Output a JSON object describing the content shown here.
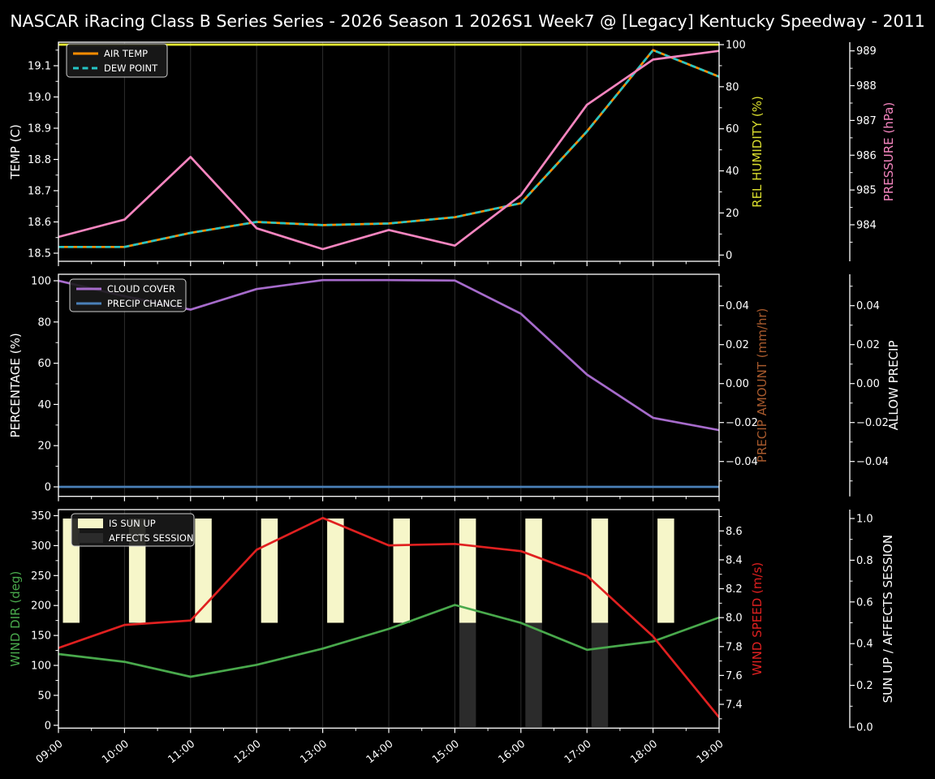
{
  "title": "NASCAR iRacing Class B Series Series - 2026 Season 1 2026S1 Week7 @ [Legacy] Kentucky Speedway - 2011",
  "colors": {
    "background": "#000000",
    "foreground": "#ffffff",
    "air_temp": "#ff8c00",
    "dew_point": "#25c5c5",
    "rel_humidity": "#dade2e",
    "pressure": "#f585bf",
    "cloud_cover": "#a66bcb",
    "precip_chance": "#4a80b8",
    "precip_amount": "#a85a2d",
    "wind_dir": "#49a94c",
    "wind_speed": "#e02020",
    "sun_up_bar": "#f6f6c9",
    "affects_session_bar": "#2b2b2b",
    "gridline": "#2e2e2e"
  },
  "x_categories": [
    "09:00",
    "10:00",
    "11:00",
    "12:00",
    "13:00",
    "14:00",
    "15:00",
    "16:00",
    "17:00",
    "18:00",
    "19:00"
  ],
  "chart_data": [
    {
      "id": "temperature-humidity-pressure",
      "type": "line",
      "axes": {
        "left": {
          "label": "TEMP (C)",
          "label_color": "#ffffff",
          "ticks": [
            "18.5",
            "18.6",
            "18.7",
            "18.8",
            "18.9",
            "19.0",
            "19.1"
          ]
        },
        "right1": {
          "label": "REL HUMIDITY (%)",
          "label_color": "#dade2e",
          "ticks": [
            "0",
            "20",
            "40",
            "60",
            "80",
            "100"
          ]
        },
        "right2": {
          "label": "PRESSURE (hPa)",
          "label_color": "#f585bf",
          "ticks": [
            "984",
            "985",
            "986",
            "987",
            "988",
            "989"
          ]
        }
      },
      "series": [
        {
          "name": "AIR TEMP",
          "kind": "line",
          "axis": "left",
          "color": "#ff8c00",
          "dash": "solid",
          "legend": true,
          "values": [
            18.52,
            18.52,
            18.565,
            18.6,
            18.59,
            18.595,
            18.615,
            18.66,
            18.89,
            19.15,
            19.065
          ]
        },
        {
          "name": "DEW POINT",
          "kind": "line",
          "axis": "left",
          "color": "#25c5c5",
          "dash": "dashed",
          "legend": true,
          "values": [
            18.52,
            18.52,
            18.565,
            18.6,
            18.59,
            18.595,
            18.615,
            18.66,
            18.89,
            19.15,
            19.065
          ]
        },
        {
          "name": "REL HUMIDITY",
          "kind": "line",
          "axis": "right1",
          "color": "#e4e832",
          "dash": "solid",
          "legend": false,
          "values": [
            100,
            100,
            100,
            100,
            100,
            100,
            100,
            100,
            100,
            100,
            100
          ]
        },
        {
          "name": "PRESSURE",
          "kind": "line",
          "axis": "right2",
          "color": "#f585bf",
          "dash": "solid",
          "legend": false,
          "values": [
            983.65,
            984.15,
            985.95,
            983.9,
            983.3,
            983.85,
            983.4,
            984.85,
            987.45,
            988.75,
            989.0
          ]
        }
      ]
    },
    {
      "id": "cloud-precip",
      "type": "line",
      "axes": {
        "left": {
          "label": "PERCENTAGE (%)",
          "label_color": "#ffffff",
          "ticks": [
            "0",
            "20",
            "40",
            "60",
            "80",
            "100"
          ]
        },
        "right1": {
          "label": "PRECIP AMOUNT (mm/hr)",
          "label_color": "#a85a2d",
          "ticks": [
            "−0.04",
            "−0.02",
            "0.00",
            "0.02",
            "0.04"
          ]
        },
        "right2": {
          "label": "ALLOW PRECIP",
          "label_color": "#ffffff",
          "ticks": [
            "−0.04",
            "−0.02",
            "0.00",
            "0.02",
            "0.04"
          ]
        }
      },
      "series": [
        {
          "name": "CLOUD COVER",
          "kind": "line",
          "axis": "left",
          "color": "#a66bcb",
          "dash": "solid",
          "legend": true,
          "values": [
            100,
            92.5,
            86,
            96,
            100.3,
            100.3,
            100.1,
            84,
            54.5,
            33.5,
            27.5
          ]
        },
        {
          "name": "PRECIP CHANCE",
          "kind": "line",
          "axis": "left",
          "color": "#4a80b8",
          "dash": "solid",
          "legend": true,
          "values": [
            0,
            0,
            0,
            0,
            0,
            0,
            0,
            0,
            0,
            0,
            0
          ]
        }
      ]
    },
    {
      "id": "wind-sun",
      "type": "mixed",
      "axes": {
        "left": {
          "label": "WIND DIR (deg)",
          "label_color": "#49a94c",
          "ticks": [
            "0",
            "50",
            "100",
            "150",
            "200",
            "250",
            "300",
            "350"
          ]
        },
        "right1": {
          "label": "WIND SPEED (m/s)",
          "label_color": "#e02020",
          "ticks": [
            "7.4",
            "7.6",
            "7.8",
            "8.0",
            "8.2",
            "8.4",
            "8.6"
          ]
        },
        "right2": {
          "label": "SUN UP / AFFECTS SESSION",
          "label_color": "#ffffff",
          "ticks": [
            "0.0",
            "0.2",
            "0.4",
            "0.6",
            "0.8",
            "1.0"
          ]
        }
      },
      "series": [
        {
          "name": "IS SUN UP",
          "kind": "bar",
          "axis": "right2",
          "color": "#f6f6c9",
          "legend": true,
          "lo": 0.5,
          "hi": 1.0,
          "values": [
            1,
            1,
            1,
            1,
            1,
            1,
            1,
            1,
            1,
            1,
            0
          ]
        },
        {
          "name": "AFFECTS SESSION",
          "kind": "bar",
          "axis": "right2",
          "color": "#2b2b2b",
          "legend": true,
          "lo": 0.0,
          "hi": 0.5,
          "values": [
            0,
            0,
            0,
            0,
            0,
            0,
            1,
            1,
            1,
            0,
            0
          ]
        },
        {
          "name": "WIND DIR",
          "kind": "line",
          "axis": "left",
          "color": "#49a94c",
          "dash": "solid",
          "legend": false,
          "values": [
            119,
            106,
            81,
            101,
            128,
            161,
            201,
            171,
            126,
            140,
            180
          ]
        },
        {
          "name": "WIND SPEED",
          "kind": "line",
          "axis": "right1",
          "color": "#e02020",
          "dash": "solid",
          "legend": false,
          "values": [
            7.79,
            7.95,
            7.98,
            8.47,
            8.69,
            8.5,
            8.51,
            8.46,
            8.29,
            7.87,
            7.31
          ]
        }
      ]
    }
  ]
}
